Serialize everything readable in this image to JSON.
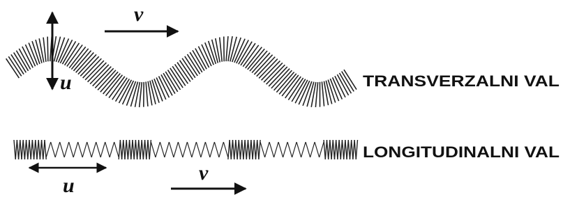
{
  "transverse": {
    "label": "TRANSVERZALNI VAL",
    "velocity": "v",
    "displacement": "u"
  },
  "longitudinal": {
    "label": "LONGITUDINALNI VAL",
    "velocity": "v",
    "displacement": "u"
  }
}
